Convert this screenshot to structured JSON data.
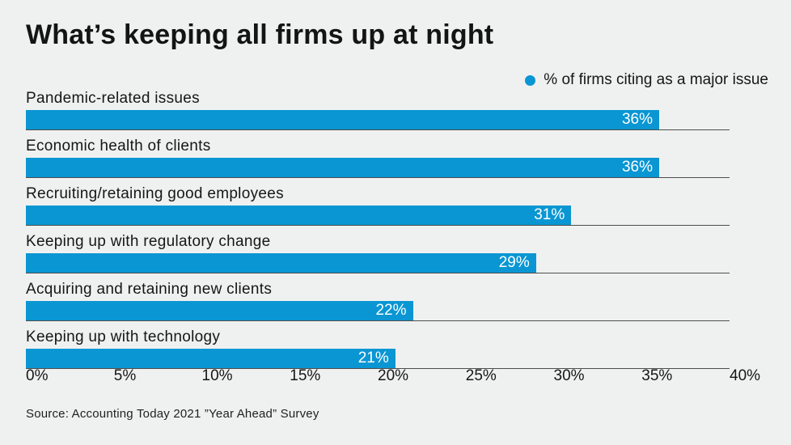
{
  "title": "What’s keeping all firms up at night",
  "legend": {
    "label": "% of firms citing as a major issue"
  },
  "source": "Source: Accounting Today 2021 ”Year Ahead” Survey",
  "colors": {
    "accent": "#0a96d3",
    "background": "#eff1f0",
    "gridline": "#4d4d4d",
    "text": "#161616",
    "value_label": "#ffffff"
  },
  "chart_data": {
    "type": "bar",
    "orientation": "horizontal",
    "title": "What’s keeping all firms up at night",
    "legend_entries": [
      "% of firms citing as a major issue"
    ],
    "legend_position": "top-right",
    "categories": [
      "Pandemic-related issues",
      "Economic health of clients",
      "Recruiting/retaining good employees",
      "Keeping up with regulatory change",
      "Acquiring and retaining new clients",
      "Keeping up with technology"
    ],
    "values": [
      36,
      36,
      31,
      29,
      22,
      21
    ],
    "value_labels": [
      "36%",
      "36%",
      "31%",
      "29%",
      "22%",
      "21%"
    ],
    "xlabel": "",
    "ylabel": "",
    "xlim": [
      0,
      40
    ],
    "x_ticks": [
      "0%",
      "5%",
      "10%",
      "15%",
      "20%",
      "25%",
      "30%",
      "35%",
      "40%"
    ],
    "x_tick_values": [
      0,
      5,
      10,
      15,
      20,
      25,
      30,
      35,
      40
    ],
    "grid": "baseline-per-bar"
  }
}
